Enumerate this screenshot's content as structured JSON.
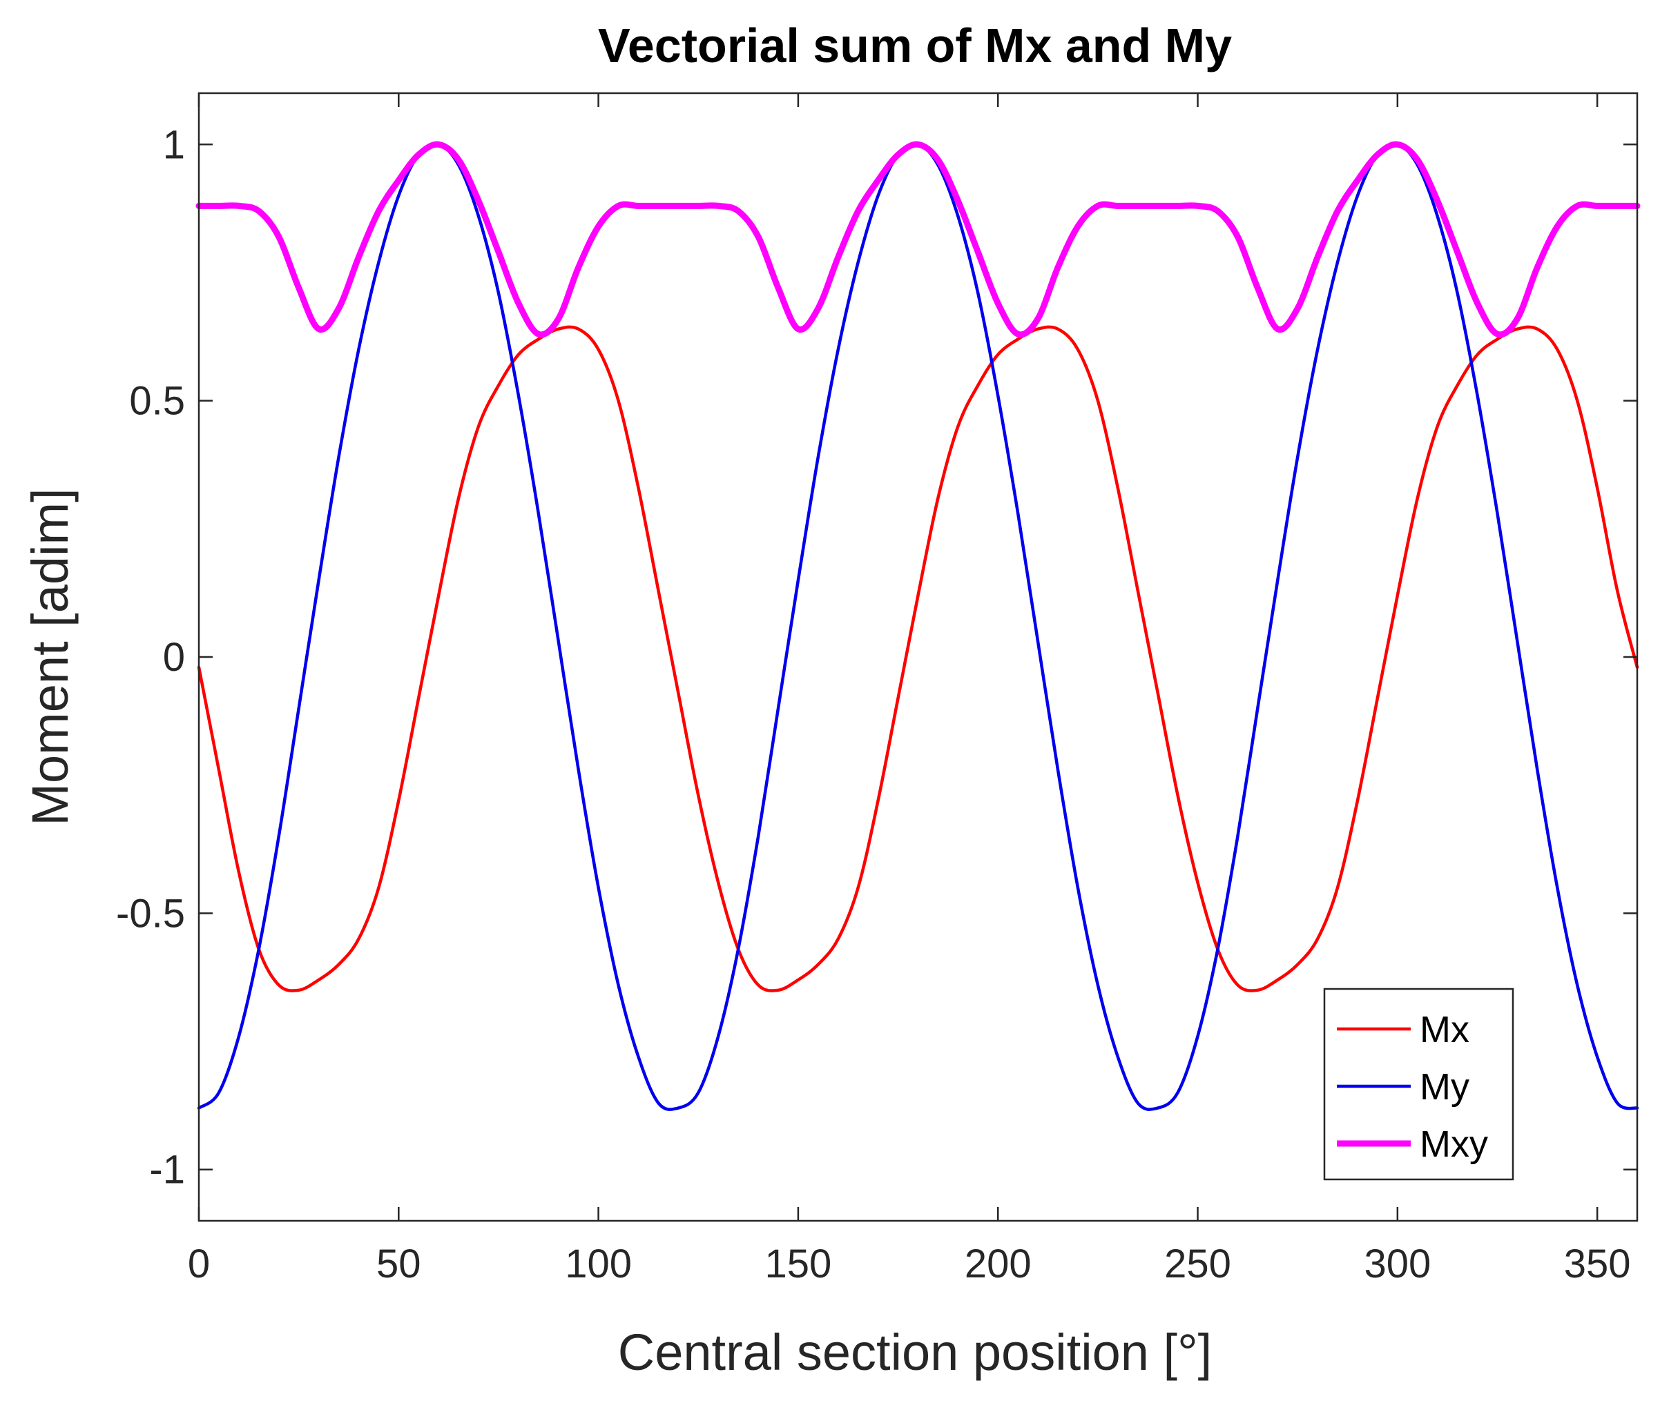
{
  "chart_data": {
    "type": "line",
    "title": "Vectorial sum of Mx and My",
    "xlabel": "Central section position [°]",
    "ylabel": "Moment [adim]",
    "xlim": [
      0,
      360
    ],
    "ylim": [
      -1.1,
      1.1
    ],
    "xticks": [
      0,
      50,
      100,
      150,
      200,
      250,
      300,
      350
    ],
    "yticks": [
      -1,
      -0.5,
      0,
      0.5,
      1
    ],
    "ytick_labels": [
      "-1",
      "-0.5",
      "0",
      "0.5",
      "1"
    ],
    "grid": false,
    "legend_position": "bottom-right",
    "series": [
      {
        "name": "Mx",
        "color": "#ff0000",
        "x": [
          0,
          5,
          10,
          15,
          20,
          25,
          30,
          35,
          40,
          45,
          50,
          55,
          60,
          65,
          70,
          75,
          80,
          85,
          90,
          95,
          100,
          105,
          110,
          115,
          120,
          125,
          130,
          135,
          140,
          145,
          150,
          155,
          160,
          165,
          170,
          175,
          180,
          185,
          190,
          195,
          200,
          205,
          210,
          215,
          220,
          225,
          230,
          235,
          240,
          245,
          250,
          255,
          260,
          265,
          270,
          275,
          280,
          285,
          290,
          295,
          300,
          305,
          310,
          315,
          320,
          325,
          330,
          335,
          340,
          345,
          350,
          355,
          360
        ],
        "values": [
          -0.02,
          -0.22,
          -0.42,
          -0.57,
          -0.64,
          -0.65,
          -0.63,
          -0.6,
          -0.55,
          -0.45,
          -0.28,
          -0.08,
          0.12,
          0.31,
          0.45,
          0.53,
          0.59,
          0.62,
          0.64,
          0.64,
          0.6,
          0.5,
          0.33,
          0.13,
          -0.07,
          -0.27,
          -0.44,
          -0.57,
          -0.64,
          -0.65,
          -0.63,
          -0.6,
          -0.55,
          -0.45,
          -0.28,
          -0.08,
          0.12,
          0.31,
          0.45,
          0.53,
          0.59,
          0.62,
          0.64,
          0.64,
          0.6,
          0.5,
          0.33,
          0.13,
          -0.07,
          -0.27,
          -0.44,
          -0.57,
          -0.64,
          -0.65,
          -0.63,
          -0.6,
          -0.55,
          -0.45,
          -0.28,
          -0.08,
          0.12,
          0.31,
          0.45,
          0.53,
          0.59,
          0.62,
          0.64,
          0.64,
          0.6,
          0.5,
          0.33,
          0.13,
          -0.02
        ]
      },
      {
        "name": "My",
        "color": "#0000ee",
        "x": [
          0,
          5,
          10,
          15,
          20,
          25,
          30,
          35,
          40,
          45,
          50,
          55,
          60,
          65,
          70,
          75,
          80,
          85,
          90,
          95,
          100,
          105,
          110,
          115,
          120,
          125,
          130,
          135,
          140,
          145,
          150,
          155,
          160,
          165,
          170,
          175,
          180,
          185,
          190,
          195,
          200,
          205,
          210,
          215,
          220,
          225,
          230,
          235,
          240,
          245,
          250,
          255,
          260,
          265,
          270,
          275,
          280,
          285,
          290,
          295,
          300,
          305,
          310,
          315,
          320,
          325,
          330,
          335,
          340,
          345,
          350,
          355,
          360
        ],
        "values": [
          -0.88,
          -0.85,
          -0.74,
          -0.57,
          -0.35,
          -0.1,
          0.15,
          0.39,
          0.6,
          0.77,
          0.9,
          0.98,
          1.0,
          0.96,
          0.86,
          0.71,
          0.51,
          0.28,
          0.03,
          -0.22,
          -0.45,
          -0.64,
          -0.78,
          -0.87,
          -0.88,
          -0.85,
          -0.74,
          -0.57,
          -0.35,
          -0.1,
          0.15,
          0.39,
          0.6,
          0.77,
          0.9,
          0.98,
          1.0,
          0.96,
          0.86,
          0.71,
          0.51,
          0.28,
          0.03,
          -0.22,
          -0.45,
          -0.64,
          -0.78,
          -0.87,
          -0.88,
          -0.85,
          -0.74,
          -0.57,
          -0.35,
          -0.1,
          0.15,
          0.39,
          0.6,
          0.77,
          0.9,
          0.98,
          1.0,
          0.96,
          0.86,
          0.71,
          0.51,
          0.28,
          0.03,
          -0.22,
          -0.45,
          -0.64,
          -0.78,
          -0.87,
          -0.88
        ]
      },
      {
        "name": "Mxy",
        "color": "#ff00ff",
        "x": [
          0,
          5,
          10,
          15,
          20,
          25,
          30,
          35,
          40,
          45,
          50,
          55,
          60,
          65,
          70,
          75,
          80,
          85,
          90,
          95,
          100,
          105,
          110,
          115,
          120,
          125,
          130,
          135,
          140,
          145,
          150,
          155,
          160,
          165,
          170,
          175,
          180,
          185,
          190,
          195,
          200,
          205,
          210,
          215,
          220,
          225,
          230,
          235,
          240,
          245,
          250,
          255,
          260,
          265,
          270,
          275,
          280,
          285,
          290,
          295,
          300,
          305,
          310,
          315,
          320,
          325,
          330,
          335,
          340,
          345,
          350,
          355,
          360
        ],
        "values": [
          0.88,
          0.88,
          0.88,
          0.87,
          0.82,
          0.72,
          0.64,
          0.68,
          0.78,
          0.87,
          0.93,
          0.98,
          1.0,
          0.97,
          0.89,
          0.79,
          0.69,
          0.63,
          0.66,
          0.76,
          0.84,
          0.88,
          0.88,
          0.88,
          0.88,
          0.88,
          0.88,
          0.87,
          0.82,
          0.72,
          0.64,
          0.68,
          0.78,
          0.87,
          0.93,
          0.98,
          1.0,
          0.97,
          0.89,
          0.79,
          0.69,
          0.63,
          0.66,
          0.76,
          0.84,
          0.88,
          0.88,
          0.88,
          0.88,
          0.88,
          0.88,
          0.87,
          0.82,
          0.72,
          0.64,
          0.68,
          0.78,
          0.87,
          0.93,
          0.98,
          1.0,
          0.97,
          0.89,
          0.79,
          0.69,
          0.63,
          0.66,
          0.76,
          0.84,
          0.88,
          0.88,
          0.88,
          0.88
        ]
      }
    ]
  }
}
